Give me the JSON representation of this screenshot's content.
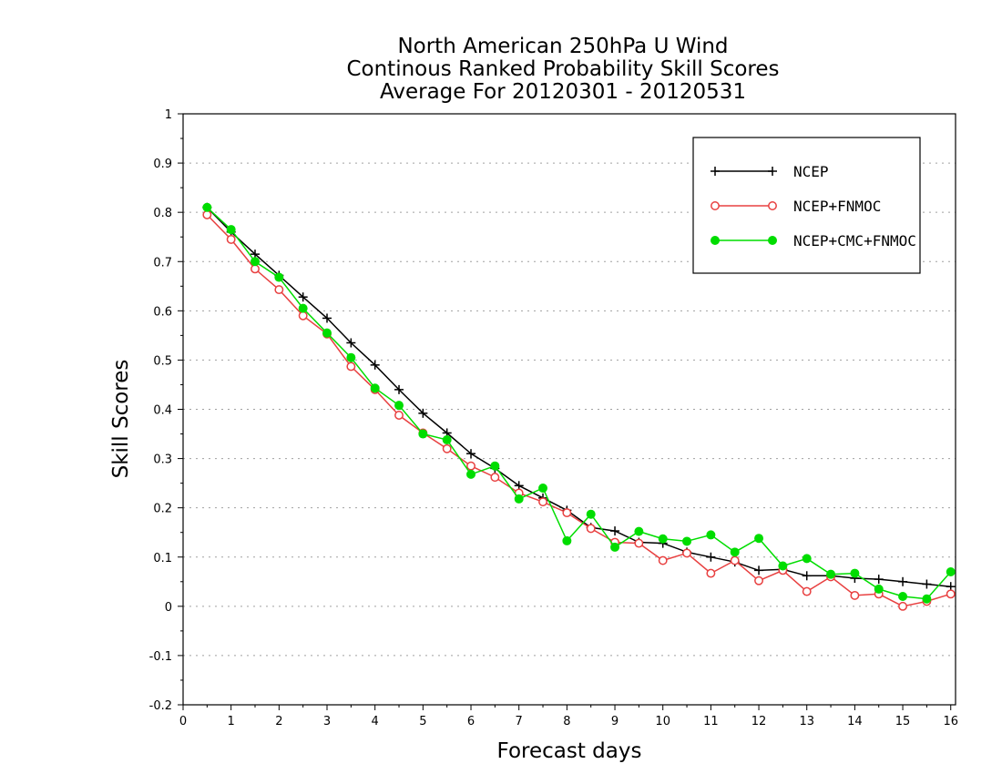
{
  "chart_data": {
    "type": "line",
    "title": [
      "North American 250hPa U Wind",
      "Continous Ranked Probability Skill Scores",
      "Average For 20120301 - 20120531"
    ],
    "xlabel": "Forecast days",
    "ylabel": "Skill Scores",
    "xlim": [
      0,
      16.1
    ],
    "ylim": [
      -0.2,
      1
    ],
    "xticks": [
      0,
      1,
      2,
      3,
      4,
      5,
      6,
      7,
      8,
      9,
      10,
      11,
      12,
      13,
      14,
      15,
      16
    ],
    "yticks": [
      -0.2,
      -0.1,
      0,
      0.1,
      0.2,
      0.3,
      0.4,
      0.5,
      0.6,
      0.7,
      0.8,
      0.9,
      1
    ],
    "ytick_labels": [
      "-0.2",
      "-0.1",
      "0",
      "0.1",
      "0.2",
      "0.3",
      "0.4",
      "0.5",
      "0.6",
      "0.7",
      "0.8",
      "0.9",
      "1"
    ],
    "grid": "horizontal-dotted",
    "legend_position": "top-right",
    "x": [
      0.5,
      1,
      1.5,
      2,
      2.5,
      3,
      3.5,
      4,
      4.5,
      5,
      5.5,
      6,
      6.5,
      7,
      7.5,
      8,
      8.5,
      9,
      9.5,
      10,
      10.5,
      11,
      11.5,
      12,
      12.5,
      13,
      13.5,
      14,
      14.5,
      15,
      15.5,
      16
    ],
    "series": [
      {
        "name": "NCEP",
        "color": "#000000",
        "marker": "plus",
        "values": [
          0.81,
          0.76,
          0.715,
          0.672,
          0.628,
          0.585,
          0.535,
          0.49,
          0.44,
          0.392,
          0.352,
          0.31,
          0.28,
          0.245,
          0.22,
          0.195,
          0.16,
          0.153,
          0.13,
          0.128,
          0.11,
          0.1,
          0.09,
          0.073,
          0.075,
          0.062,
          0.062,
          0.057,
          0.055,
          0.05,
          0.045,
          0.04
        ]
      },
      {
        "name": "NCEP+FNMOC",
        "color": "#e84040",
        "marker": "open-circle",
        "values": [
          0.795,
          0.745,
          0.685,
          0.643,
          0.59,
          0.553,
          0.487,
          0.44,
          0.388,
          0.352,
          0.32,
          0.285,
          0.262,
          0.23,
          0.212,
          0.19,
          0.158,
          0.13,
          0.128,
          0.093,
          0.108,
          0.067,
          0.093,
          0.052,
          0.073,
          0.03,
          0.06,
          0.022,
          0.025,
          0.0,
          0.01,
          0.025
        ]
      },
      {
        "name": "NCEP+CMC+FNMOC",
        "color": "#00dd00",
        "marker": "filled-circle",
        "values": [
          0.81,
          0.765,
          0.7,
          0.668,
          0.605,
          0.555,
          0.505,
          0.443,
          0.408,
          0.35,
          0.338,
          0.268,
          0.285,
          0.218,
          0.24,
          0.133,
          0.187,
          0.12,
          0.152,
          0.137,
          0.132,
          0.145,
          0.11,
          0.138,
          0.082,
          0.097,
          0.065,
          0.067,
          0.035,
          0.02,
          0.015,
          0.07
        ]
      }
    ]
  }
}
